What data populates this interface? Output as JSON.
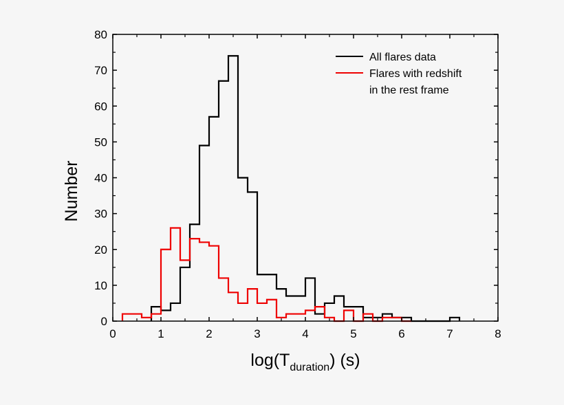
{
  "chart_data": {
    "type": "histogram",
    "xlabel_main": "log(T",
    "xlabel_sub": "duration",
    "xlabel_end": ") (s)",
    "ylabel": "Number",
    "xlim": [
      0,
      8
    ],
    "ylim": [
      0,
      80
    ],
    "xticks": [
      0,
      1,
      2,
      3,
      4,
      5,
      6,
      7,
      8
    ],
    "yticks": [
      0,
      10,
      20,
      30,
      40,
      50,
      60,
      70,
      80
    ],
    "grid": false,
    "legend_position": "top-right",
    "bin_width": 0.2,
    "series": [
      {
        "name": "All flares data",
        "color": "#000000",
        "start": 0.8,
        "values": [
          4,
          3,
          5,
          15,
          27,
          49,
          57,
          67,
          74,
          40,
          36,
          13,
          13,
          9,
          7,
          7,
          12,
          2,
          5,
          7,
          4,
          4,
          1,
          1,
          2,
          1,
          1,
          0,
          0,
          0,
          0,
          1
        ]
      },
      {
        "name": "Flares with redshift",
        "name_line2": "in the rest frame",
        "color": "#ee0000",
        "start": 0.2,
        "values": [
          2,
          2,
          1,
          2,
          20,
          26,
          17,
          23,
          22,
          21,
          12,
          8,
          5,
          9,
          5,
          6,
          1,
          2,
          2,
          3,
          4,
          1,
          0,
          3,
          0,
          2,
          0,
          1,
          1,
          0
        ]
      }
    ]
  }
}
